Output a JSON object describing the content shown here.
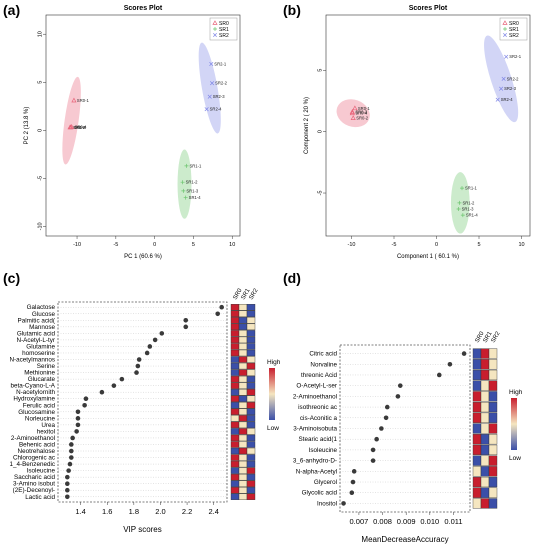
{
  "panels": [
    {
      "letter": "(a)",
      "chart_data": {
        "type": "scatter",
        "title": "Scores Plot",
        "xlabel": "PC 1 (60.6 %)",
        "ylabel": "PC 2 (13.8 %)",
        "xlim": [
          -14,
          11
        ],
        "ylim": [
          -11,
          12
        ],
        "xticks": [
          -10,
          -5,
          0,
          5,
          10
        ],
        "yticks": [
          -10,
          -5,
          0,
          5,
          10
        ],
        "legend": {
          "position": "top-right",
          "entries": [
            "SR0",
            "SR1",
            "SR2"
          ]
        },
        "colors": {
          "SR0": "#e8647a",
          "SR1": "#6cc56e",
          "SR2": "#7f86e6"
        },
        "markers": {
          "SR0": "triangle",
          "SR1": "plus",
          "SR2": "x"
        },
        "series": [
          {
            "name": "SR0",
            "points": [
              {
                "x": -10.4,
                "y": 3.1,
                "label": "SR0-1"
              },
              {
                "x": -10.9,
                "y": 0.3,
                "label": "SR0-2"
              },
              {
                "x": -10.8,
                "y": 0.3,
                "label": "SR0-3"
              },
              {
                "x": -10.7,
                "y": 0.35,
                "label": "SR0-4"
              }
            ],
            "ellipse": {
              "cx": -10.7,
              "cy": 1.0,
              "rx": 0.9,
              "ry": 4.6,
              "angle": 8
            }
          },
          {
            "name": "SR1",
            "points": [
              {
                "x": 4.1,
                "y": -3.7,
                "label": "SR1-1"
              },
              {
                "x": 3.6,
                "y": -5.4,
                "label": "SR1-2"
              },
              {
                "x": 3.7,
                "y": -6.3,
                "label": "SR1-3"
              },
              {
                "x": 4.0,
                "y": -7.0,
                "label": "SR1-4"
              }
            ],
            "ellipse": {
              "cx": 3.85,
              "cy": -5.6,
              "rx": 0.9,
              "ry": 3.6,
              "angle": 0
            }
          },
          {
            "name": "SR2",
            "points": [
              {
                "x": 7.3,
                "y": 6.9,
                "label": "SR2-1"
              },
              {
                "x": 7.4,
                "y": 4.9,
                "label": "SR2-2"
              },
              {
                "x": 7.1,
                "y": 3.5,
                "label": "SR2-3"
              },
              {
                "x": 6.7,
                "y": 2.2,
                "label": "SR2-4"
              }
            ],
            "ellipse": {
              "cx": 7.1,
              "cy": 4.4,
              "rx": 1.0,
              "ry": 4.8,
              "angle": -10
            }
          }
        ]
      }
    },
    {
      "letter": "(b)",
      "chart_data": {
        "type": "scatter",
        "title": "Scores Plot",
        "xlabel": "Component 1 ( 60.1 %)",
        "ylabel": "Component 2 ( 20 %)",
        "xlim": [
          -13,
          11
        ],
        "ylim": [
          -8.5,
          9.5
        ],
        "xticks": [
          -10,
          -5,
          0,
          5,
          10
        ],
        "yticks": [
          -5,
          0,
          5
        ],
        "legend": {
          "position": "top-right",
          "entries": [
            "SR0",
            "SR1",
            "SR2"
          ]
        },
        "colors": {
          "SR0": "#e8647a",
          "SR1": "#6cc56e",
          "SR2": "#7f86e6"
        },
        "markers": {
          "SR0": "triangle",
          "SR1": "plus",
          "SR2": "x"
        },
        "series": [
          {
            "name": "SR0",
            "points": [
              {
                "x": -9.6,
                "y": 1.9,
                "label": "SR0-1"
              },
              {
                "x": -9.9,
                "y": 1.6,
                "label": "SR0-3"
              },
              {
                "x": -9.9,
                "y": 1.5,
                "label": "SR0-4"
              },
              {
                "x": -9.8,
                "y": 1.1,
                "label": "SR0-2"
              }
            ],
            "ellipse": {
              "cx": -9.8,
              "cy": 1.5,
              "rx": 2.0,
              "ry": 1.1,
              "angle": 20
            }
          },
          {
            "name": "SR1",
            "points": [
              {
                "x": 3.0,
                "y": -4.6,
                "label": "SR1-1"
              },
              {
                "x": 2.7,
                "y": -5.8,
                "label": "SR1-2"
              },
              {
                "x": 2.6,
                "y": -6.3,
                "label": "SR1-3"
              },
              {
                "x": 3.1,
                "y": -6.8,
                "label": "SR1-4"
              }
            ],
            "ellipse": {
              "cx": 2.8,
              "cy": -5.8,
              "rx": 1.1,
              "ry": 2.5,
              "angle": 0
            }
          },
          {
            "name": "SR2",
            "points": [
              {
                "x": 8.2,
                "y": 6.1,
                "label": "SR2-1"
              },
              {
                "x": 7.9,
                "y": 4.3,
                "label": "SR2-2"
              },
              {
                "x": 7.6,
                "y": 3.5,
                "label": "SR2-3"
              },
              {
                "x": 7.2,
                "y": 2.6,
                "label": "SR2-4"
              }
            ],
            "ellipse": {
              "cx": 7.6,
              "cy": 4.3,
              "rx": 1.2,
              "ry": 3.7,
              "angle": -18
            }
          }
        ]
      }
    },
    {
      "letter": "(c)",
      "chart_data": {
        "type": "scatter",
        "title": "",
        "xlabel": "VIP scores",
        "ylabel": "",
        "xlim": [
          1.23,
          2.5
        ],
        "xticks": [
          1.4,
          1.6,
          1.8,
          2.0,
          2.2,
          2.4
        ],
        "categories": [
          "Galactose",
          "Glucose",
          "Palmitic acid(",
          "Mannose",
          "Glutamic acid",
          "N-Acetyl-L-tyr",
          "Glutamine",
          "homoserine",
          "N-acetylmannos",
          "Serine",
          "Methionine",
          "Glucarate",
          "beta-Cyano-L-A",
          "N-acetylornith",
          "Hydroxylamine",
          "Ferulic acid",
          "Glucosamine",
          "Norleucine",
          "Urea",
          "hexitol",
          "2-Aminoethanol",
          "Behenic acid",
          "Neotrehalose",
          "Chlorogenic ac",
          "1_4-Benzenedic",
          "Isoleucine",
          "Saccharic acid",
          "3-Amino isobut",
          "(2E)-Decenoyl-",
          "Lactic acid"
        ],
        "values": [
          2.46,
          2.43,
          2.19,
          2.19,
          2.01,
          1.96,
          1.92,
          1.9,
          1.84,
          1.83,
          1.82,
          1.71,
          1.65,
          1.56,
          1.44,
          1.43,
          1.38,
          1.38,
          1.38,
          1.37,
          1.34,
          1.33,
          1.33,
          1.33,
          1.32,
          1.31,
          1.3,
          1.3,
          1.3,
          1.3
        ],
        "heatmap": {
          "columns": [
            "SR0",
            "SR1",
            "SR2"
          ],
          "levels": [
            [
              3,
              2,
              1
            ],
            [
              3,
              2,
              1
            ],
            [
              3,
              1,
              2
            ],
            [
              3,
              1,
              2
            ],
            [
              3,
              2,
              1
            ],
            [
              3,
              2,
              1
            ],
            [
              3,
              2,
              1
            ],
            [
              3,
              2,
              1
            ],
            [
              1,
              3,
              2
            ],
            [
              1,
              2,
              3
            ],
            [
              1,
              3,
              2
            ],
            [
              3,
              2,
              1
            ],
            [
              3,
              2,
              1
            ],
            [
              1,
              2,
              3
            ],
            [
              3,
              1,
              2
            ],
            [
              1,
              2,
              3
            ],
            [
              3,
              2,
              1
            ],
            [
              2,
              3,
              1
            ],
            [
              3,
              2,
              1
            ],
            [
              1,
              3,
              2
            ],
            [
              3,
              2,
              1
            ],
            [
              3,
              2,
              1
            ],
            [
              1,
              3,
              2
            ],
            [
              3,
              2,
              1
            ],
            [
              3,
              2,
              1
            ],
            [
              1,
              2,
              3
            ],
            [
              3,
              2,
              1
            ],
            [
              1,
              2,
              3
            ],
            [
              3,
              2,
              1
            ],
            [
              1,
              2,
              3
            ]
          ]
        },
        "colorbar": {
          "high": "High",
          "low": "Low"
        }
      }
    },
    {
      "letter": "(d)",
      "chart_data": {
        "type": "scatter",
        "title": "",
        "xlabel": "MeanDecreaseAccuracy",
        "ylabel": "",
        "xlim": [
          0.0062,
          0.0117
        ],
        "xticks": [
          0.007,
          0.008,
          0.009,
          0.01,
          0.011
        ],
        "xtick_labels": [
          "0.007",
          "0.008",
          "0.009",
          "0.010",
          "0.011"
        ],
        "categories": [
          "Citric acid",
          "Norvaline",
          "threonic Acid",
          "O-Acetyl-L-ser",
          "2-Aminoethanol",
          "isothreonic ac",
          "cis-Aconitic a",
          "3-Aminoisobuta",
          "Stearic acid(1",
          "Isoleucine",
          "3_6-anhydro-D-",
          "N-alpha-Acetyl",
          "Glycerol",
          "Glycolic acid",
          "Inositol"
        ],
        "values": [
          0.01145,
          0.01085,
          0.0104,
          0.00875,
          0.00865,
          0.0082,
          0.00815,
          0.00795,
          0.00775,
          0.0076,
          0.0076,
          0.0068,
          0.00675,
          0.0067,
          0.00635
        ],
        "heatmap": {
          "columns": [
            "SR0",
            "SR1",
            "SR2"
          ],
          "levels": [
            [
              1,
              3,
              2
            ],
            [
              1,
              3,
              2
            ],
            [
              1,
              3,
              2
            ],
            [
              1,
              2,
              3
            ],
            [
              3,
              2,
              1
            ],
            [
              3,
              2,
              1
            ],
            [
              3,
              2,
              1
            ],
            [
              1,
              2,
              3
            ],
            [
              3,
              1,
              2
            ],
            [
              3,
              1,
              2
            ],
            [
              1,
              2,
              3
            ],
            [
              2,
              1,
              3
            ],
            [
              3,
              2,
              1
            ],
            [
              3,
              1,
              2
            ],
            [
              2,
              3,
              1
            ]
          ]
        },
        "colorbar": {
          "high": "High",
          "low": "Low"
        }
      }
    }
  ]
}
